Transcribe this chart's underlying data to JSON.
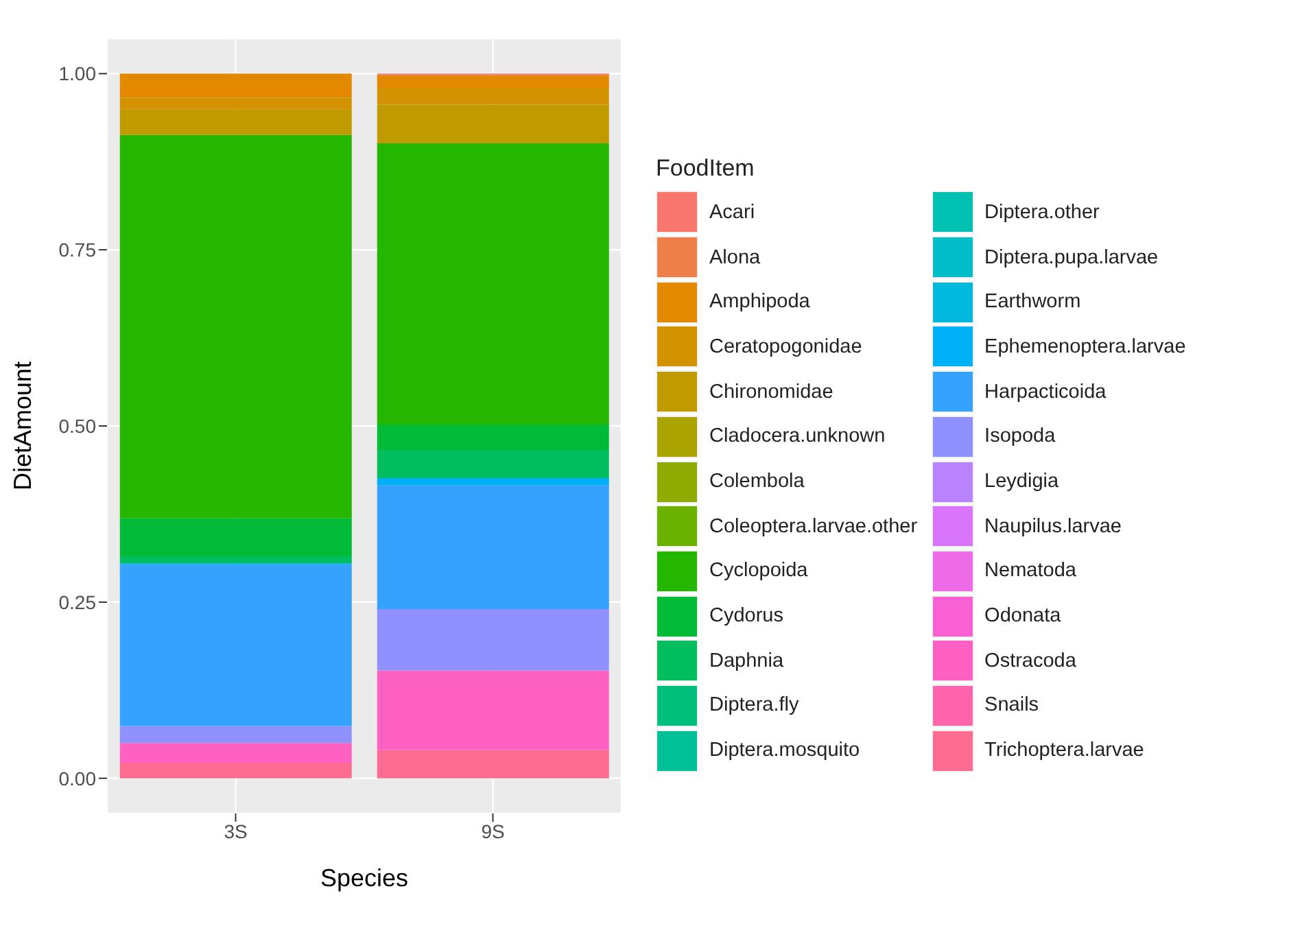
{
  "chart_data": {
    "type": "bar",
    "stacked": true,
    "xlabel": "Species",
    "ylabel": "DietAmount",
    "legend_title": "FoodItem",
    "legend": "right",
    "grid": true,
    "categories": [
      "3S",
      "9S"
    ],
    "ylim": [
      -0.05,
      1.05
    ],
    "yticks": [
      {
        "value": 0,
        "label": "0.00"
      },
      {
        "value": 0.25,
        "label": "0.25"
      },
      {
        "value": 0.5,
        "label": "0.50"
      },
      {
        "value": 0.75,
        "label": "0.75"
      },
      {
        "value": 1,
        "label": "1.00"
      }
    ],
    "series": [
      {
        "name": "Trichoptera.larvae",
        "color": "#ff6c91",
        "values": [
          0.022,
          0.04
        ]
      },
      {
        "name": "Snails",
        "color": "#ff65ac",
        "values": [
          0,
          0
        ]
      },
      {
        "name": "Ostracoda",
        "color": "#ff61c3",
        "values": [
          0.028,
          0.113
        ]
      },
      {
        "name": "Odonata",
        "color": "#fa62d4",
        "values": [
          0,
          0
        ]
      },
      {
        "name": "Nematoda",
        "color": "#ee6be8",
        "values": [
          0,
          0
        ]
      },
      {
        "name": "Naupilus.larvae",
        "color": "#d975fa",
        "values": [
          0,
          0
        ]
      },
      {
        "name": "Leydigia",
        "color": "#b983ff",
        "values": [
          0,
          0
        ]
      },
      {
        "name": "Isopoda",
        "color": "#8f91ff",
        "values": [
          0.024,
          0.087
        ]
      },
      {
        "name": "Harpacticoida",
        "color": "#35a2ff",
        "values": [
          0.229,
          0.176
        ]
      },
      {
        "name": "Ephemenoptera.larvae",
        "color": "#00b0f6",
        "values": [
          0.002,
          0.01
        ]
      },
      {
        "name": "Earthworm",
        "color": "#00b8dc",
        "values": [
          0,
          0
        ]
      },
      {
        "name": "Diptera.pupa.larvae",
        "color": "#00bdc8",
        "values": [
          0,
          0
        ]
      },
      {
        "name": "Diptera.other",
        "color": "#00c0b1",
        "values": [
          0,
          0
        ]
      },
      {
        "name": "Diptera.mosquito",
        "color": "#00c098",
        "values": [
          0,
          0
        ]
      },
      {
        "name": "Diptera.fly",
        "color": "#00bf7d",
        "values": [
          0,
          0
        ]
      },
      {
        "name": "Daphnia",
        "color": "#00bd5f",
        "values": [
          0.01,
          0.04
        ]
      },
      {
        "name": "Cydorus",
        "color": "#00ba38",
        "values": [
          0.054,
          0.036
        ]
      },
      {
        "name": "Cyclopoida",
        "color": "#25b600",
        "values": [
          0.544,
          0.399
        ]
      },
      {
        "name": "Coleoptera.larvae.other",
        "color": "#6bb100",
        "values": [
          0,
          0
        ]
      },
      {
        "name": "Colembola",
        "color": "#8faa00",
        "values": [
          0,
          0
        ]
      },
      {
        "name": "Cladocera.unknown",
        "color": "#aaa300",
        "values": [
          0,
          0
        ]
      },
      {
        "name": "Chironomidae",
        "color": "#c09b00",
        "values": [
          0.036,
          0.055
        ]
      },
      {
        "name": "Ceratopogonidae",
        "color": "#d39200",
        "values": [
          0.017,
          0.024
        ]
      },
      {
        "name": "Amphipoda",
        "color": "#e38900",
        "values": [
          0.034,
          0.018
        ]
      },
      {
        "name": "Alona",
        "color": "#ef7f49",
        "values": [
          0,
          0
        ]
      },
      {
        "name": "Acari",
        "color": "#f8766d",
        "values": [
          0,
          0.002
        ]
      }
    ]
  }
}
